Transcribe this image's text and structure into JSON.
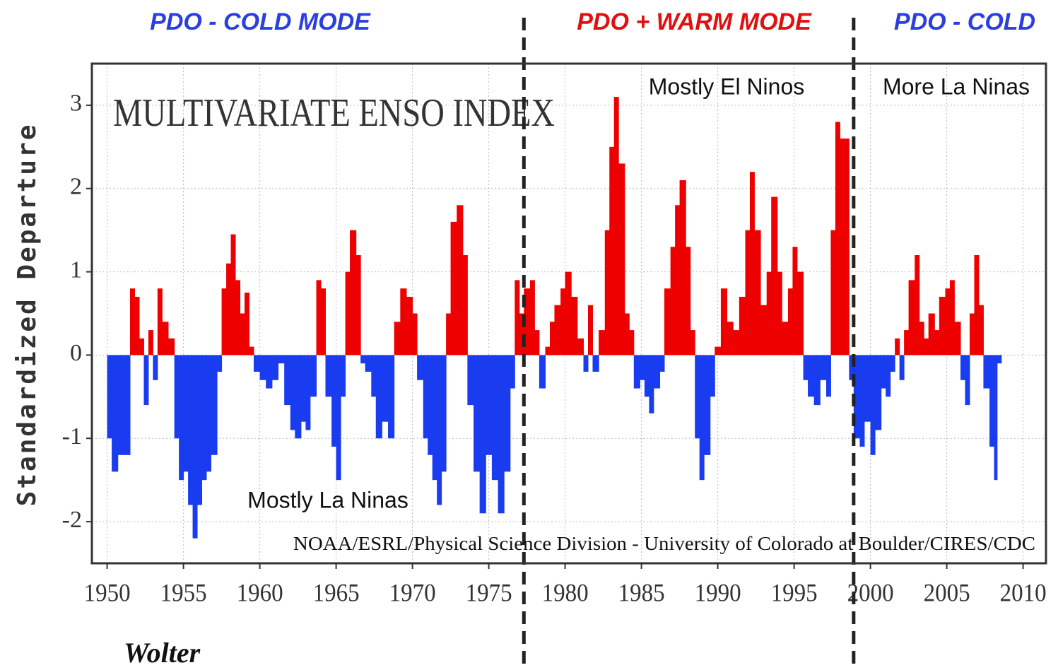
{
  "chart_data": {
    "type": "area",
    "title": "MULTIVARIATE ENSO INDEX",
    "y_label": "Standardized Departure",
    "annotations": [
      {
        "text": "PDO - COLD MODE",
        "color": "#2b3fe0"
      },
      {
        "text": "PDO + WARM MODE",
        "color": "#e01010"
      },
      {
        "text": "PDO - COLD",
        "color": "#2b3fe0"
      },
      {
        "text": "Mostly El Ninos",
        "color": "#111111"
      },
      {
        "text": "More La Ninas",
        "color": "#111111"
      },
      {
        "text": "Mostly La Ninas",
        "color": "#111111"
      },
      {
        "text": "NOAA/ESRL/Physical Science Division - University of Colorado at Boulder/CIRES/CDC",
        "color": "#111111"
      },
      {
        "text": "Wolter",
        "color": "#111111"
      }
    ],
    "dividers": [
      1977.3,
      1998.9
    ],
    "positive_color": "#ee0000",
    "negative_color": "#1a3cf0",
    "xlim": [
      1949,
      2011.5
    ],
    "ylim": [
      -2.5,
      3.5
    ],
    "xticks": [
      1950,
      1955,
      1960,
      1965,
      1970,
      1975,
      1980,
      1985,
      1990,
      1995,
      2000,
      2005,
      2010
    ],
    "yticks": [
      -2,
      -1,
      0,
      1,
      2,
      3
    ],
    "grid": true,
    "x": [
      1950.0,
      1950.3,
      1950.7,
      1951.0,
      1951.5,
      1951.8,
      1952.1,
      1952.4,
      1952.7,
      1953.0,
      1953.3,
      1953.6,
      1954.0,
      1954.4,
      1954.7,
      1955.0,
      1955.3,
      1955.6,
      1955.9,
      1956.2,
      1956.5,
      1956.8,
      1957.2,
      1957.5,
      1957.8,
      1958.1,
      1958.4,
      1958.7,
      1959.0,
      1959.3,
      1959.6,
      1960.0,
      1960.4,
      1960.8,
      1961.2,
      1961.6,
      1962.0,
      1962.3,
      1962.7,
      1963.0,
      1963.3,
      1963.7,
      1964.0,
      1964.3,
      1964.7,
      1965.0,
      1965.3,
      1965.6,
      1965.9,
      1966.3,
      1966.6,
      1966.9,
      1967.3,
      1967.6,
      1968.0,
      1968.4,
      1968.8,
      1969.2,
      1969.6,
      1970.0,
      1970.3,
      1970.7,
      1971.0,
      1971.3,
      1971.6,
      1971.9,
      1972.2,
      1972.5,
      1972.9,
      1973.3,
      1973.6,
      1974.0,
      1974.4,
      1974.8,
      1975.2,
      1975.6,
      1976.0,
      1976.4,
      1976.7,
      1977.0,
      1977.3,
      1977.7,
      1978.0,
      1978.3,
      1978.7,
      1979.0,
      1979.3,
      1979.7,
      1980.0,
      1980.4,
      1980.8,
      1981.2,
      1981.5,
      1981.8,
      1982.2,
      1982.6,
      1982.9,
      1983.2,
      1983.5,
      1983.9,
      1984.2,
      1984.5,
      1984.9,
      1985.2,
      1985.5,
      1985.8,
      1986.2,
      1986.5,
      1986.9,
      1987.2,
      1987.5,
      1987.9,
      1988.2,
      1988.5,
      1988.8,
      1989.1,
      1989.5,
      1989.8,
      1990.2,
      1990.6,
      1991.0,
      1991.4,
      1991.8,
      1992.1,
      1992.4,
      1992.8,
      1993.2,
      1993.5,
      1993.9,
      1994.2,
      1994.6,
      1994.9,
      1995.2,
      1995.6,
      1995.9,
      1996.3,
      1996.7,
      1997.1,
      1997.4,
      1997.7,
      1998.0,
      1998.3,
      1998.6,
      1998.9,
      1999.3,
      1999.6,
      2000.0,
      2000.3,
      2000.7,
      2001.0,
      2001.3,
      2001.6,
      2001.9,
      2002.2,
      2002.5,
      2002.9,
      2003.2,
      2003.5,
      2003.8,
      2004.2,
      2004.5,
      2004.9,
      2005.2,
      2005.5,
      2005.9,
      2006.2,
      2006.5,
      2006.8,
      2007.1,
      2007.4,
      2007.8,
      2008.1,
      2008.3
    ],
    "values": [
      -1.0,
      -1.4,
      -1.2,
      -1.2,
      0.8,
      0.7,
      0.2,
      -0.6,
      0.3,
      -0.3,
      0.8,
      0.4,
      0.2,
      -1.0,
      -1.5,
      -1.4,
      -1.8,
      -2.2,
      -1.8,
      -1.5,
      -1.4,
      -1.2,
      -0.2,
      0.8,
      1.1,
      1.45,
      0.9,
      0.5,
      0.75,
      0.1,
      -0.2,
      -0.3,
      -0.4,
      -0.3,
      -0.1,
      -0.6,
      -0.9,
      -1.0,
      -0.8,
      -0.9,
      -0.5,
      0.9,
      0.8,
      -0.5,
      -1.1,
      -1.5,
      -0.5,
      1.0,
      1.5,
      1.2,
      -0.1,
      -0.2,
      -0.5,
      -1.0,
      -0.8,
      -1.0,
      0.4,
      0.8,
      0.7,
      0.5,
      -0.3,
      -1.0,
      -1.2,
      -1.5,
      -1.8,
      -1.4,
      0.5,
      1.6,
      1.8,
      1.2,
      -0.6,
      -1.4,
      -1.9,
      -1.2,
      -1.5,
      -1.9,
      -1.4,
      -0.4,
      0.9,
      0.5,
      0.8,
      0.9,
      0.3,
      -0.4,
      0.1,
      0.4,
      0.6,
      0.8,
      1.0,
      0.7,
      0.2,
      -0.2,
      0.6,
      -0.2,
      0.3,
      1.5,
      2.5,
      3.1,
      2.3,
      0.5,
      0.3,
      -0.4,
      -0.3,
      -0.5,
      -0.7,
      -0.4,
      -0.2,
      0.8,
      1.3,
      1.8,
      2.1,
      1.3,
      0.3,
      -1.0,
      -1.5,
      -1.2,
      -0.5,
      0.1,
      0.8,
      0.4,
      0.3,
      0.7,
      1.5,
      2.2,
      1.5,
      0.6,
      1.0,
      1.9,
      1.0,
      0.4,
      0.8,
      1.3,
      1.0,
      -0.3,
      -0.5,
      -0.6,
      -0.3,
      -0.5,
      1.5,
      2.8,
      2.6,
      2.6,
      -0.3,
      -1.0,
      -1.1,
      -0.8,
      -1.2,
      -0.9,
      -0.4,
      -0.5,
      -0.2,
      0.2,
      -0.3,
      0.3,
      0.9,
      1.2,
      0.4,
      0.2,
      0.5,
      0.3,
      0.7,
      0.8,
      0.9,
      0.4,
      -0.3,
      -0.6,
      0.5,
      1.2,
      0.6,
      -0.4,
      -1.1,
      -1.5,
      -0.1
    ]
  }
}
